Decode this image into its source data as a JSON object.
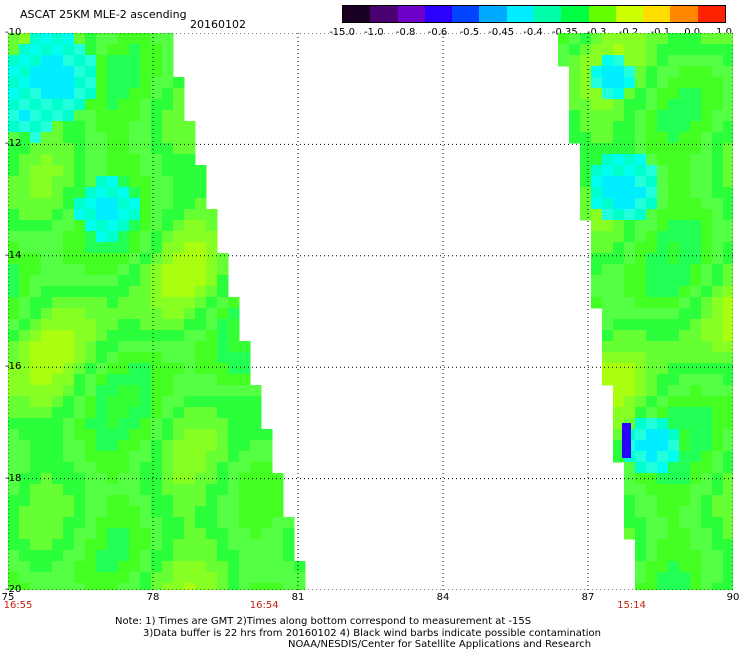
{
  "header": {
    "title": "ASCAT 25KM MLE-2 ascending",
    "date": "20160102"
  },
  "colorbar": {
    "labels": [
      "-15.0",
      "-1.0",
      "-0.8",
      "-0.6",
      "-0.5",
      "-0.45",
      "-0.4",
      "-0.35",
      "-0.3",
      "-0.2",
      "-0.1",
      "0.0",
      "1.0"
    ],
    "colors": [
      "#1a0022",
      "#4a0070",
      "#6e00c8",
      "#2a00ff",
      "#0044ff",
      "#00aaff",
      "#00eeff",
      "#00ffaa",
      "#00ff44",
      "#66ff00",
      "#ccff00",
      "#ffdd00",
      "#ff8800",
      "#ff2200"
    ]
  },
  "axes": {
    "lat_labels": [
      "-10",
      "-12",
      "-14",
      "-16",
      "-18",
      "-20"
    ],
    "lon_labels": [
      "75",
      "78",
      "81",
      "84",
      "87",
      "90"
    ],
    "lat_range": [
      -20,
      -10
    ],
    "lon_range": [
      75,
      90
    ]
  },
  "time_labels": [
    "16:55",
    "16:54",
    "15:14"
  ],
  "notes": [
    "Note: 1) Times are GMT 2)Times along bottom correspond to measurement at -15S",
    "3)Data buffer is 22 hrs from 20160102 4) Black wind barbs indicate possible contamination",
    "NOAA/NESDIS/Center for Satellite Applications and Research"
  ],
  "swaths": [
    {
      "name": "west-swath",
      "lon_start": 75,
      "lat_top": -10,
      "edge_lon_top": 78.2,
      "edge_lon_bottom": 81.1
    },
    {
      "name": "east-swath",
      "lon_end": 90,
      "lat_top": -10,
      "edge_lon_top": 86.3,
      "edge_lon_bottom": 87.9
    }
  ],
  "colors": {
    "background": "#ffffff",
    "grid": "#000000",
    "time_label": "#c0220f"
  }
}
